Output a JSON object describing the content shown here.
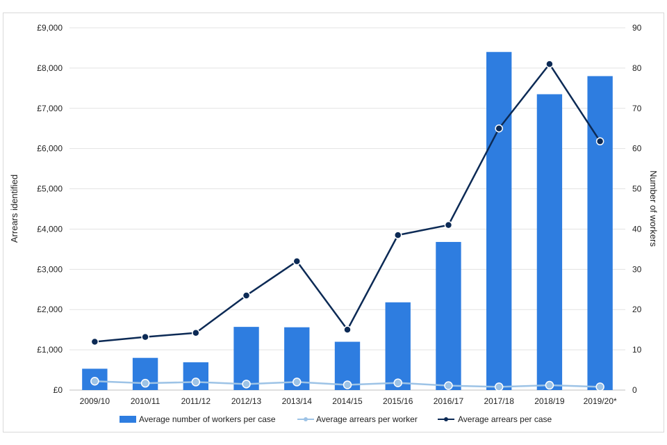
{
  "chart_data": {
    "type": "bar",
    "categories": [
      "2009/10",
      "2010/11",
      "2011/12",
      "2012/13",
      "2013/14",
      "2014/15",
      "2015/16",
      "2016/17",
      "2017/18",
      "2018/19",
      "2019/20*"
    ],
    "left_axis": {
      "label": "Arrears identified",
      "ylim": [
        0,
        9000
      ],
      "ticks": [
        "£0",
        "£1,000",
        "£2,000",
        "£3,000",
        "£4,000",
        "£5,000",
        "£6,000",
        "£7,000",
        "£8,000",
        "£9,000"
      ]
    },
    "right_axis": {
      "label": "Number of workers",
      "ylim": [
        0,
        90
      ],
      "ticks": [
        "0",
        "10",
        "20",
        "30",
        "40",
        "50",
        "60",
        "70",
        "80",
        "90"
      ]
    },
    "series": [
      {
        "name": "Average number of workers per case",
        "type": "bar",
        "axis": "right",
        "color": "#2e7de0",
        "values": [
          5.3,
          8.0,
          6.9,
          15.7,
          15.6,
          12.0,
          21.8,
          36.8,
          84.0,
          73.5,
          78.0
        ]
      },
      {
        "name": "Average arrears per worker",
        "type": "line",
        "axis": "left",
        "color": "#9dc3e6",
        "values": [
          220,
          170,
          200,
          150,
          200,
          130,
          180,
          110,
          80,
          120,
          80
        ]
      },
      {
        "name": "Average arrears per case",
        "type": "line",
        "axis": "left",
        "color": "#0c2a55",
        "values": [
          1200,
          1320,
          1420,
          2350,
          3200,
          1500,
          3850,
          4100,
          6500,
          8100,
          6180
        ]
      }
    ],
    "grid": true,
    "legend_position": "bottom"
  }
}
